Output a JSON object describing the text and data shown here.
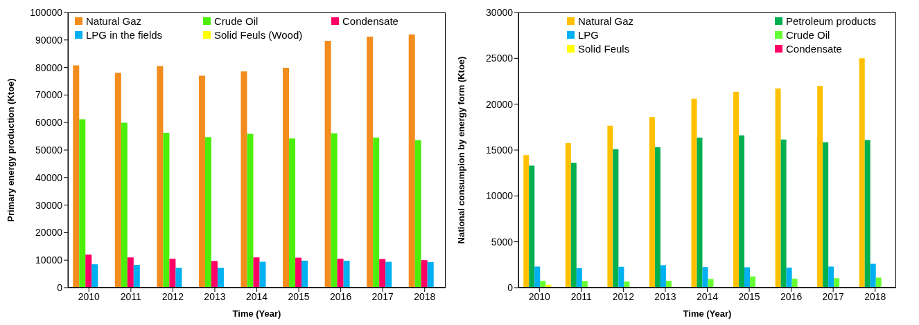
{
  "chart_data": [
    {
      "type": "bar",
      "xlabel": "Time (Year)",
      "ylabel": "Primary energy production (Ktoe)",
      "categories": [
        "2010",
        "2011",
        "2012",
        "2013",
        "2014",
        "2015",
        "2016",
        "2017",
        "2018"
      ],
      "ylim": [
        0,
        100000
      ],
      "yticks": [
        0,
        10000,
        20000,
        30000,
        40000,
        50000,
        60000,
        70000,
        80000,
        90000,
        100000
      ],
      "grid": false,
      "legend": "top",
      "series": [
        {
          "name": "Natural Gaz",
          "color": "#f28c1c",
          "values": [
            80800,
            78100,
            80500,
            77000,
            78600,
            79900,
            89700,
            91200,
            92000
          ]
        },
        {
          "name": "Crude Oil",
          "color": "#4cef0a",
          "values": [
            61200,
            59900,
            56300,
            54700,
            55900,
            54200,
            56100,
            54500,
            53600
          ]
        },
        {
          "name": "Condensate",
          "color": "#ff0066",
          "values": [
            12000,
            11000,
            10500,
            9700,
            11000,
            10900,
            10500,
            10400,
            10000
          ]
        },
        {
          "name": "LPG in the fields",
          "color": "#00b0f0",
          "values": [
            8500,
            8300,
            7200,
            7200,
            9400,
            9800,
            9800,
            9400,
            9300
          ]
        },
        {
          "name": "Solid Feuls (Wood)",
          "color": "#ffff00",
          "values": [
            0,
            0,
            0,
            0,
            0,
            0,
            0,
            0,
            0
          ]
        }
      ]
    },
    {
      "type": "bar",
      "xlabel": "Time (Year)",
      "ylabel": "National consumpion by energy form (Ktoe)",
      "categories": [
        "2010",
        "2011",
        "2012",
        "2013",
        "2014",
        "2015",
        "2016",
        "2017",
        "2018"
      ],
      "ylim": [
        0,
        30000
      ],
      "yticks": [
        0,
        5000,
        10000,
        15000,
        20000,
        25000,
        30000
      ],
      "grid": false,
      "legend": "top",
      "series": [
        {
          "name": "Natural Gaz",
          "color": "#ffc000",
          "values": [
            14450,
            15750,
            17650,
            18600,
            20600,
            21350,
            21700,
            22000,
            25000
          ]
        },
        {
          "name": "Petroleum products",
          "color": "#00b050",
          "values": [
            13300,
            13600,
            15100,
            15300,
            16350,
            16600,
            16150,
            15850,
            16100
          ]
        },
        {
          "name": "LPG",
          "color": "#00b0f0",
          "values": [
            2300,
            2130,
            2280,
            2450,
            2250,
            2220,
            2190,
            2300,
            2600
          ]
        },
        {
          "name": "Crude Oil",
          "color": "#66ff33",
          "values": [
            750,
            720,
            660,
            750,
            950,
            1230,
            980,
            1030,
            1090
          ]
        },
        {
          "name": "Solid Feuls",
          "color": "#ffff00",
          "values": [
            320,
            0,
            0,
            0,
            0,
            0,
            0,
            0,
            0
          ]
        },
        {
          "name": "Condensate",
          "color": "#ff0066",
          "values": [
            0,
            0,
            0,
            0,
            0,
            0,
            0,
            0,
            0
          ]
        }
      ]
    }
  ]
}
